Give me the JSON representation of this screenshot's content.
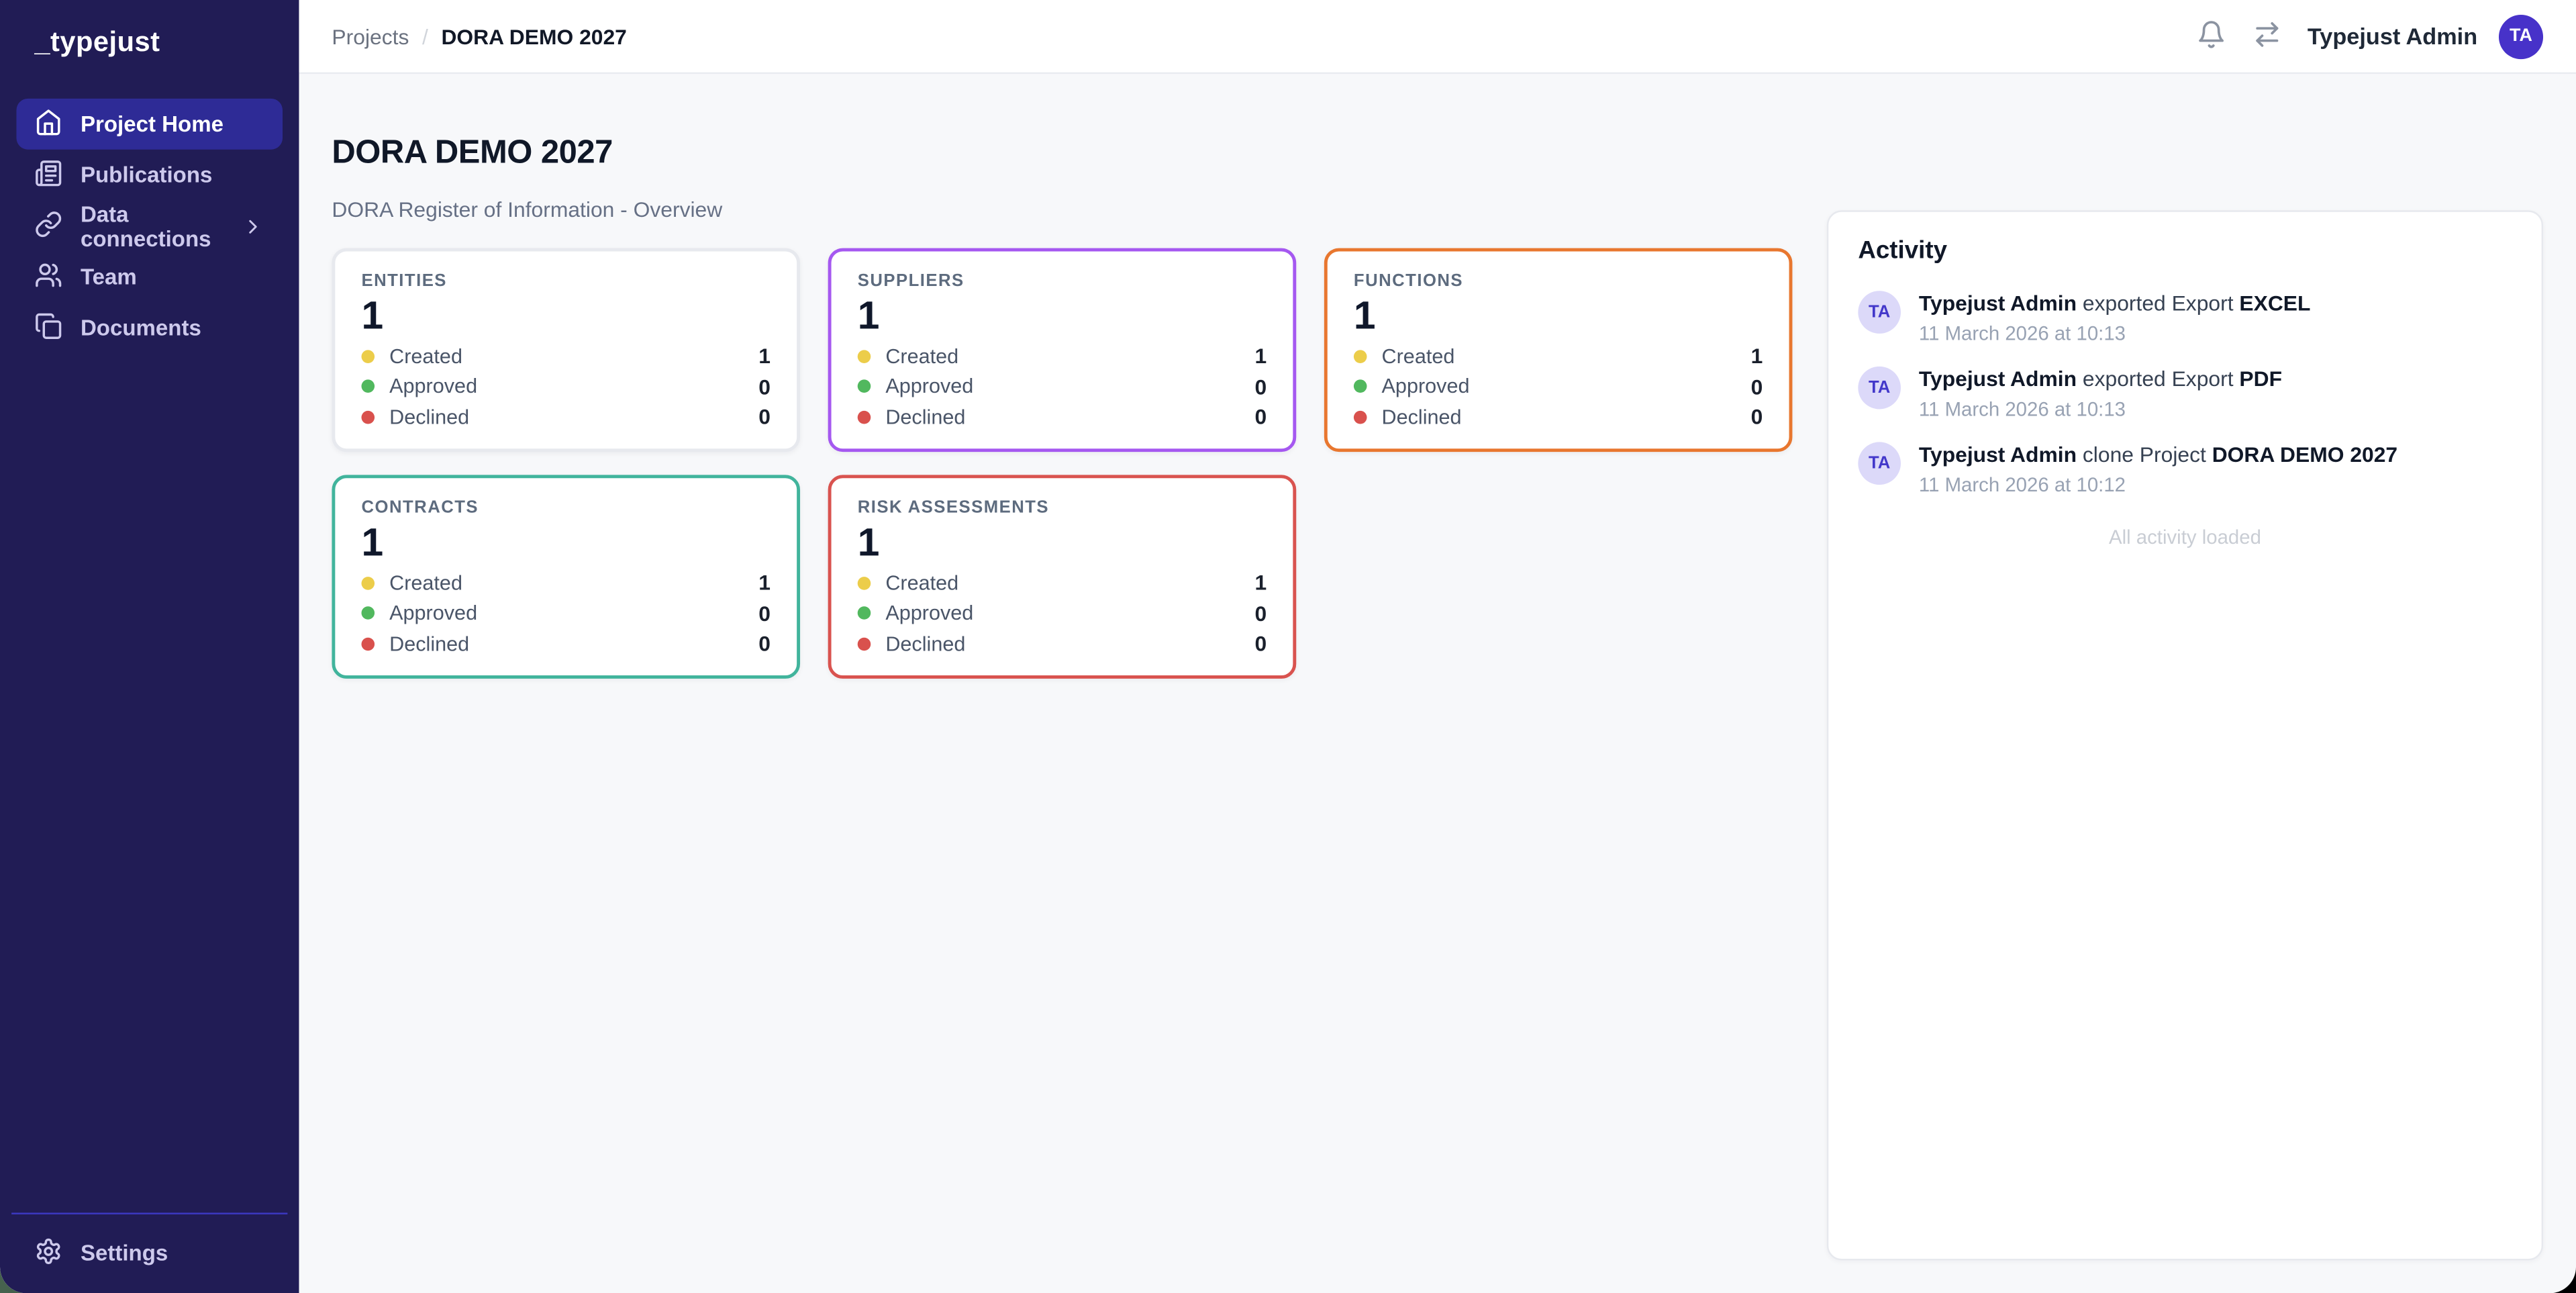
{
  "sidebar": {
    "logo": "_typejust",
    "items": [
      {
        "label": "Project Home",
        "icon": "home-icon",
        "active": true,
        "has_submenu": false
      },
      {
        "label": "Publications",
        "icon": "newspaper-icon",
        "active": false,
        "has_submenu": false
      },
      {
        "label": "Data connections",
        "icon": "link-icon",
        "active": false,
        "has_submenu": true
      },
      {
        "label": "Team",
        "icon": "users-icon",
        "active": false,
        "has_submenu": false
      },
      {
        "label": "Documents",
        "icon": "documents-icon",
        "active": false,
        "has_submenu": false
      }
    ],
    "settings": {
      "label": "Settings",
      "icon": "gear-icon"
    }
  },
  "topbar": {
    "breadcrumb": {
      "parent": "Projects",
      "separator": "/",
      "current": "DORA DEMO 2027"
    },
    "notifications_icon": "bell-icon",
    "switcher_icon": "swap-icon",
    "user": {
      "name": "Typejust Admin",
      "initials": "TA"
    }
  },
  "page": {
    "title": "DORA DEMO 2027",
    "subtitle": "DORA Register of Information - Overview"
  },
  "summary_cards": [
    {
      "label": "ENTITIES",
      "count": "1",
      "accent": "#e7e9ee",
      "stats": [
        {
          "label": "Created",
          "value": "1",
          "color": "#eccd4a"
        },
        {
          "label": "Approved",
          "value": "0",
          "color": "#51b85e"
        },
        {
          "label": "Declined",
          "value": "0",
          "color": "#d9514d"
        }
      ]
    },
    {
      "label": "SUPPLIERS",
      "count": "1",
      "accent": "#a558f0",
      "stats": [
        {
          "label": "Created",
          "value": "1",
          "color": "#eccd4a"
        },
        {
          "label": "Approved",
          "value": "0",
          "color": "#51b85e"
        },
        {
          "label": "Declined",
          "value": "0",
          "color": "#d9514d"
        }
      ]
    },
    {
      "label": "FUNCTIONS",
      "count": "1",
      "accent": "#e8772f",
      "stats": [
        {
          "label": "Created",
          "value": "1",
          "color": "#eccd4a"
        },
        {
          "label": "Approved",
          "value": "0",
          "color": "#51b85e"
        },
        {
          "label": "Declined",
          "value": "0",
          "color": "#d9514d"
        }
      ]
    },
    {
      "label": "CONTRACTS",
      "count": "1",
      "accent": "#41b49c",
      "stats": [
        {
          "label": "Created",
          "value": "1",
          "color": "#eccd4a"
        },
        {
          "label": "Approved",
          "value": "0",
          "color": "#51b85e"
        },
        {
          "label": "Declined",
          "value": "0",
          "color": "#d9514d"
        }
      ]
    },
    {
      "label": "RISK ASSESSMENTS",
      "count": "1",
      "accent": "#d9534f",
      "stats": [
        {
          "label": "Created",
          "value": "1",
          "color": "#eccd4a"
        },
        {
          "label": "Approved",
          "value": "0",
          "color": "#51b85e"
        },
        {
          "label": "Declined",
          "value": "0",
          "color": "#d9514d"
        }
      ]
    }
  ],
  "activity": {
    "title": "Activity",
    "items": [
      {
        "initials": "TA",
        "name": "Typejust Admin",
        "action": "exported Export",
        "target": "EXCEL",
        "timestamp": "11 March 2026 at 10:13"
      },
      {
        "initials": "TA",
        "name": "Typejust Admin",
        "action": "exported Export",
        "target": "PDF",
        "timestamp": "11 March 2026 at 10:13"
      },
      {
        "initials": "TA",
        "name": "Typejust Admin",
        "action": "clone Project",
        "target": "DORA DEMO 2027",
        "timestamp": "11 March 2026 at 10:12"
      }
    ],
    "footer": "All activity loaded"
  },
  "colors": {
    "sidebar_bg": "#211c55",
    "sidebar_active": "#2e2b96",
    "sidebar_divider": "#3c38c2",
    "topbar_avatar_bg": "#4732c9",
    "activity_avatar_bg": "#dcd9f9",
    "activity_avatar_text": "#4338ca",
    "created_dot": "#eccd4a",
    "approved_dot": "#51b85e",
    "declined_dot": "#d9514d"
  }
}
